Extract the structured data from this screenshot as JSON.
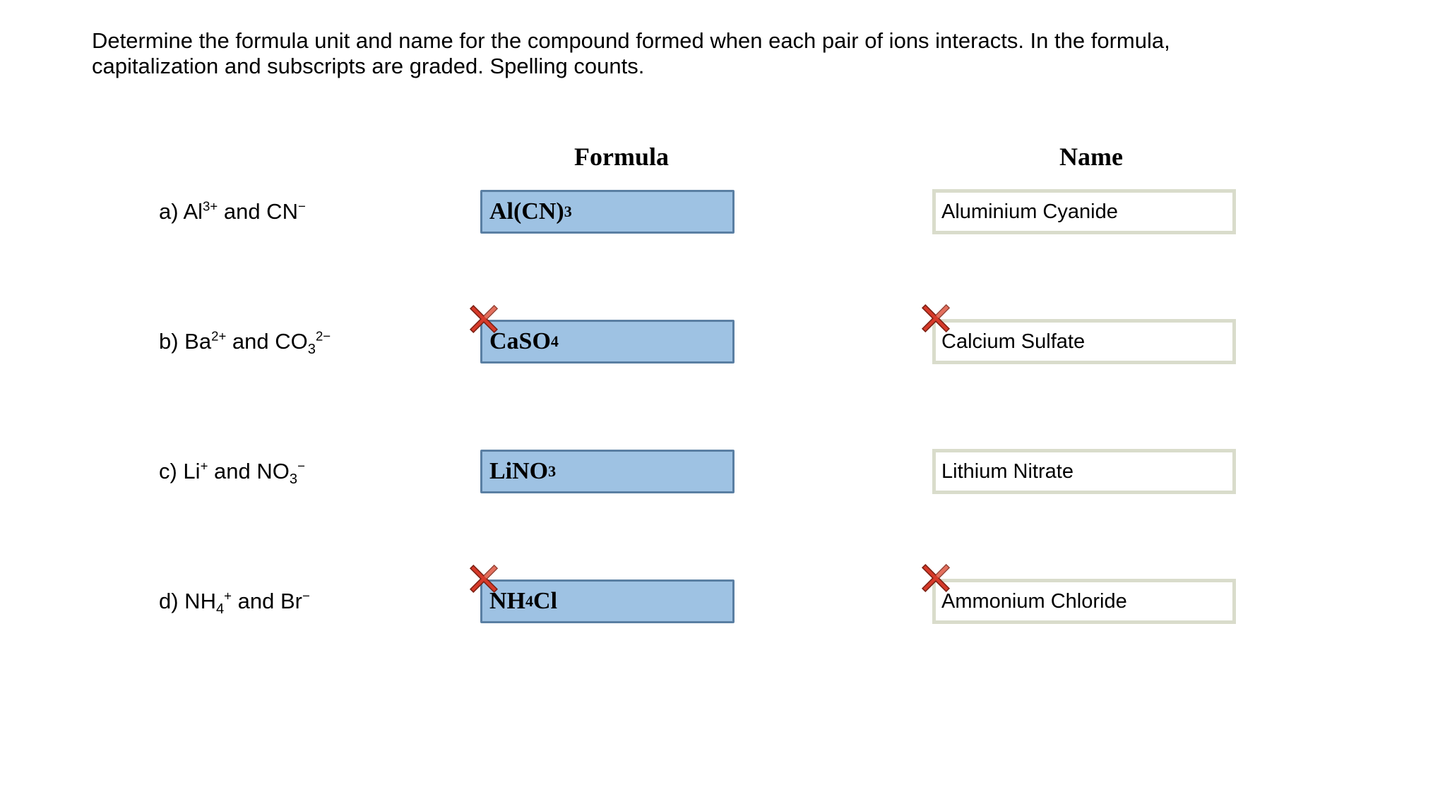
{
  "instructions": "Determine the formula unit and name for the compound formed when each pair of ions interacts. In the formula, capitalization and subscripts are graded. Spelling counts.",
  "headers": {
    "formula": "Formula",
    "name": "Name"
  },
  "rows": [
    {
      "label_html": "a) Al<sup>3+</sup> and CN<sup>−</sup>",
      "formula_html": "Al(CN)<sub>3</sub>",
      "name": "Aluminium Cyanide",
      "formula_wrong": false,
      "name_wrong": false
    },
    {
      "label_html": "b) Ba<sup>2+</sup> and CO<sub>3</sub><sup>2−</sup>",
      "formula_html": "CaSO<sub>4</sub>",
      "name": "Calcium Sulfate",
      "formula_wrong": true,
      "name_wrong": true
    },
    {
      "label_html": "c) Li<sup>+</sup> and NO<sub>3</sub><sup>−</sup>",
      "formula_html": "LiNO<sub>3</sub>",
      "name": "Lithium Nitrate",
      "formula_wrong": false,
      "name_wrong": false
    },
    {
      "label_html": "d) NH<sub>4</sub><sup>+</sup> and Br<sup>−</sup>",
      "formula_html": "NH<sub>4</sub>Cl",
      "name": "Ammonium Chloride",
      "formula_wrong": true,
      "name_wrong": true
    }
  ],
  "colors": {
    "formula_box_bg": "#9ec2e3",
    "formula_box_border": "#5a7fa3",
    "name_box_border": "#d9dccb",
    "x_fill": "#d63a2a",
    "x_highlight": "#f2a38f",
    "x_outline": "#7a1f12"
  }
}
